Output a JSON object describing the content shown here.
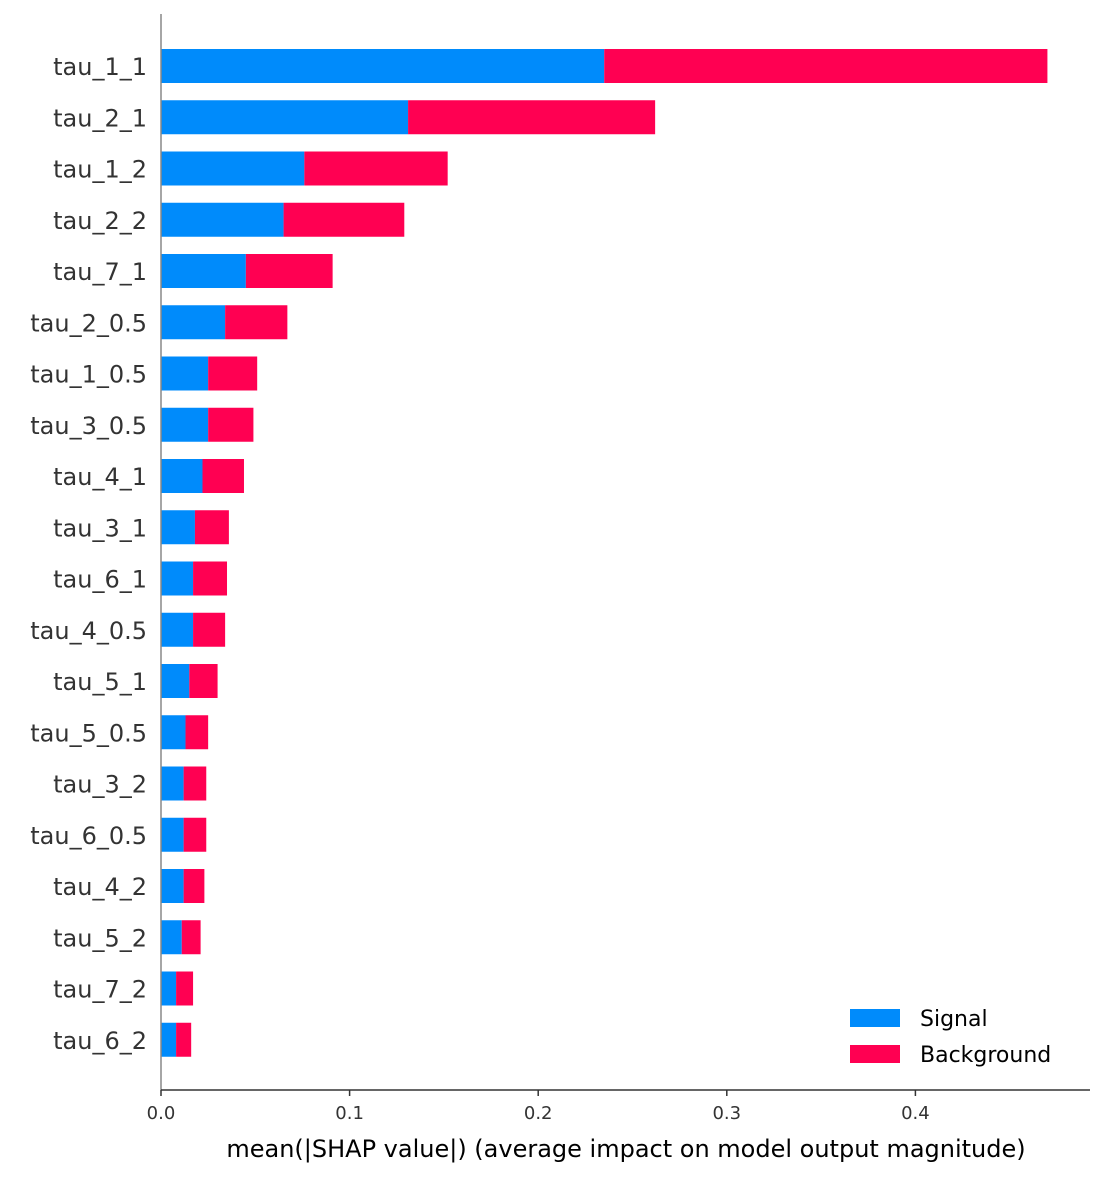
{
  "chart_data": {
    "type": "bar",
    "orientation": "horizontal",
    "stacked": true,
    "title": "",
    "xlabel": "mean(|SHAP value|) (average impact on model output magnitude)",
    "ylabel": "",
    "xlim": [
      0,
      0.49
    ],
    "xticks": [
      "0.0",
      "0.1",
      "0.2",
      "0.3",
      "0.4"
    ],
    "xtick_values": [
      0.0,
      0.1,
      0.2,
      0.3,
      0.4
    ],
    "grid": false,
    "legend_position": "bottom-right",
    "categories": [
      "tau_1_1",
      "tau_2_1",
      "tau_1_2",
      "tau_2_2",
      "tau_7_1",
      "tau_2_0.5",
      "tau_1_0.5",
      "tau_3_0.5",
      "tau_4_1",
      "tau_3_1",
      "tau_6_1",
      "tau_4_0.5",
      "tau_5_1",
      "tau_5_0.5",
      "tau_3_2",
      "tau_6_0.5",
      "tau_4_2",
      "tau_5_2",
      "tau_7_2",
      "tau_6_2"
    ],
    "series": [
      {
        "name": "Signal",
        "color": "#008bfb",
        "values": [
          0.235,
          0.131,
          0.076,
          0.065,
          0.045,
          0.034,
          0.025,
          0.025,
          0.022,
          0.018,
          0.017,
          0.017,
          0.015,
          0.013,
          0.012,
          0.012,
          0.012,
          0.011,
          0.008,
          0.008
        ]
      },
      {
        "name": "Background",
        "color": "#ff0052",
        "values": [
          0.235,
          0.131,
          0.076,
          0.064,
          0.046,
          0.033,
          0.026,
          0.024,
          0.022,
          0.018,
          0.018,
          0.017,
          0.015,
          0.012,
          0.012,
          0.012,
          0.011,
          0.01,
          0.009,
          0.008
        ]
      }
    ]
  }
}
